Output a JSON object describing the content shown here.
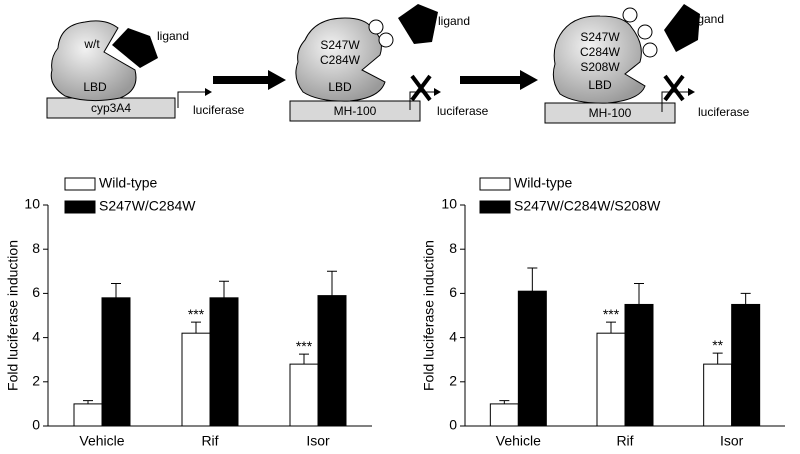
{
  "diagram": {
    "panel1": {
      "mutation": "w/t",
      "ligand": "ligand",
      "domain": "LBD",
      "promoter": "cyp3A4",
      "reporter": "luciferase"
    },
    "panel2": {
      "mutations": [
        "S247W",
        "C284W"
      ],
      "ligand": "ligand",
      "domain": "LBD",
      "promoter": "MH-100",
      "reporter": "luciferase"
    },
    "panel3": {
      "mutations": [
        "S247W",
        "C284W",
        "S208W"
      ],
      "ligand": "ligand",
      "domain": "LBD",
      "promoter": "MH-100",
      "reporter": "luciferase"
    }
  },
  "chart_data": [
    {
      "type": "bar",
      "ylabel": "Fold luciferase induction",
      "categories": [
        "Vehicle",
        "Rif",
        "Isor"
      ],
      "series": [
        {
          "name": "Wild-type",
          "color": "#ffffff",
          "values": [
            1.0,
            4.2,
            2.8
          ],
          "errors": [
            0.15,
            0.5,
            0.45
          ],
          "significance": [
            null,
            "***",
            "***"
          ]
        },
        {
          "name": "S247W/C284W",
          "color": "#000000",
          "values": [
            5.8,
            5.8,
            5.9
          ],
          "errors": [
            0.65,
            0.75,
            1.1
          ]
        }
      ],
      "ylim": [
        0,
        10
      ],
      "yticks": [
        0,
        2,
        4,
        6,
        8,
        10
      ]
    },
    {
      "type": "bar",
      "ylabel": "Fold luciferase induction",
      "categories": [
        "Vehicle",
        "Rif",
        "Isor"
      ],
      "series": [
        {
          "name": "Wild-type",
          "color": "#ffffff",
          "values": [
            1.0,
            4.2,
            2.8
          ],
          "errors": [
            0.15,
            0.5,
            0.5
          ],
          "significance": [
            null,
            "***",
            "**"
          ]
        },
        {
          "name": "S247W/C284W/S208W",
          "color": "#000000",
          "values": [
            6.1,
            5.5,
            5.5
          ],
          "errors": [
            1.05,
            0.95,
            0.5
          ]
        }
      ],
      "ylim": [
        0,
        10
      ],
      "yticks": [
        0,
        2,
        4,
        6,
        8,
        10
      ]
    }
  ]
}
